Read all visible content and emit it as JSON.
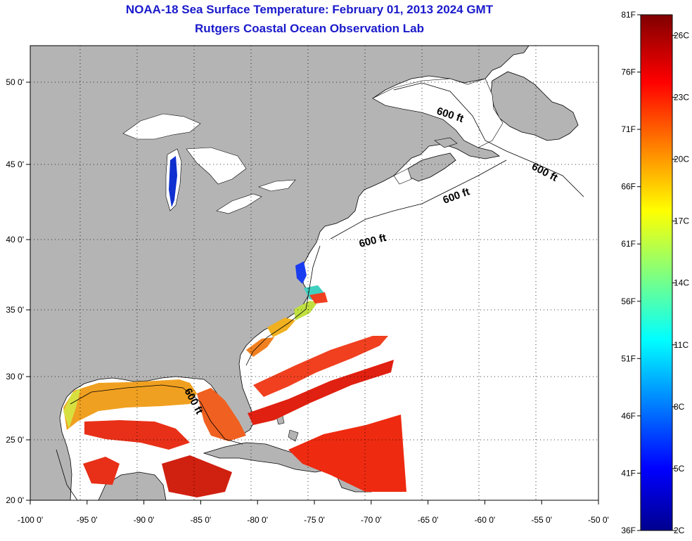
{
  "title": {
    "line1": "NOAA-18 Sea Surface Temperature:  February 01, 2013 2024 GMT",
    "line2": "Rutgers Coastal Ocean Observation Lab"
  },
  "map": {
    "lon_ticks": [
      -100,
      -95,
      -90,
      -85,
      -80,
      -75,
      -70,
      -65,
      -60,
      -55,
      -50
    ],
    "lon_labels": [
      "-100 0'",
      "-95 0'",
      "-90 0'",
      "-85 0'",
      "-80 0'",
      "-75 0'",
      "-70 0'",
      "-65 0'",
      "-60 0'",
      "-55 0'",
      "-50 0'"
    ],
    "lat_ticks": [
      20,
      25,
      30,
      35,
      40,
      45,
      50
    ],
    "lat_labels": [
      "20 0'",
      "25 0'",
      "30 0'",
      "35 0'",
      "40 0'",
      "45 0'",
      "50 0'"
    ],
    "lon_range": [
      -100,
      -50
    ],
    "lat_range": [
      20,
      52.5
    ],
    "grid": "dotted",
    "isobath_label": "600 ft",
    "colors": {
      "land": "#b4b4b4",
      "ocean_no_data": "#ffffff",
      "coast": "#000000"
    }
  },
  "colorbar": {
    "range_f": [
      36,
      81
    ],
    "range_c": [
      2,
      27
    ],
    "f_labels": [
      "81F",
      "76F",
      "71F",
      "66F",
      "61F",
      "56F",
      "51F",
      "46F",
      "41F",
      "36F"
    ],
    "f_values": [
      81,
      76,
      71,
      66,
      61,
      56,
      51,
      46,
      41,
      36
    ],
    "c_labels": [
      "26C",
      "23C",
      "20C",
      "17C",
      "14C",
      "11C",
      "8C",
      "5C",
      "2C"
    ],
    "c_values": [
      26,
      23,
      20,
      17,
      14,
      11,
      8,
      5,
      2
    ],
    "colormap": "jet"
  }
}
